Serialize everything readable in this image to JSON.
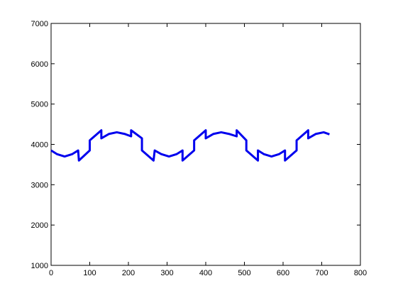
{
  "chart_data": {
    "type": "line",
    "x": [
      0,
      15,
      35,
      55,
      70,
      72,
      100,
      100,
      130,
      130,
      150,
      170,
      190,
      207,
      207,
      235,
      235,
      265,
      268,
      285,
      305,
      325,
      340,
      340,
      370,
      370,
      400,
      400,
      420,
      440,
      460,
      480,
      480,
      505,
      505,
      535,
      535,
      550,
      570,
      590,
      605,
      605,
      635,
      635,
      665,
      665,
      685,
      705,
      720
    ],
    "series": [
      {
        "color": "#0000ee",
        "values": [
          3850,
          3760,
          3700,
          3760,
          3850,
          3600,
          3850,
          4100,
          4350,
          4150,
          4260,
          4300,
          4260,
          4200,
          4350,
          4150,
          3850,
          3600,
          3850,
          3760,
          3700,
          3760,
          3850,
          3600,
          3850,
          4100,
          4350,
          4150,
          4260,
          4300,
          4260,
          4200,
          4350,
          4100,
          3850,
          3600,
          3850,
          3760,
          3700,
          3760,
          3850,
          3600,
          3850,
          4100,
          4350,
          4150,
          4260,
          4300,
          4250
        ]
      }
    ],
    "xlim": [
      0,
      800
    ],
    "xticks": [
      0,
      100,
      200,
      300,
      400,
      500,
      600,
      700,
      800
    ],
    "ylim": [
      1000,
      7000
    ],
    "yticks": [
      1000,
      2000,
      3000,
      4000,
      5000,
      6000,
      7000
    ],
    "grid": false
  }
}
